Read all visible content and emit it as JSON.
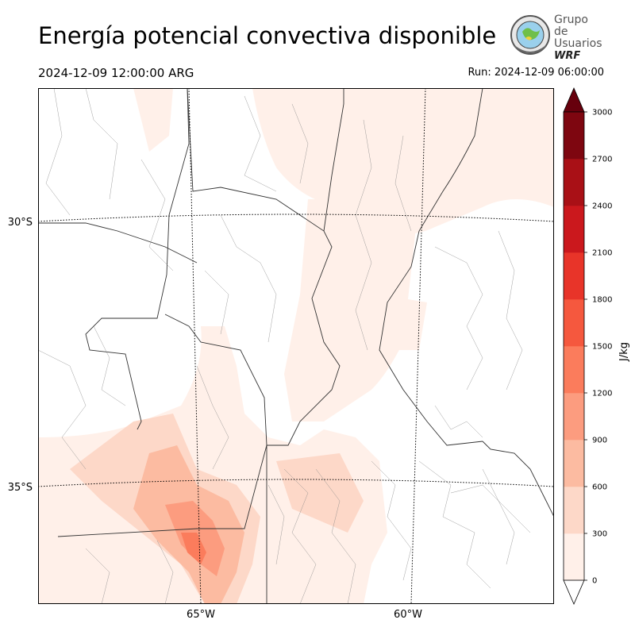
{
  "header": {
    "title": "Energía potencial convectiva disponible",
    "valid_time": "2024-12-09 12:00:00 ARG",
    "run_time": "Run: 2024-12-09 06:00:00"
  },
  "logo": {
    "line1": "Grupo de",
    "line2": "Usuarios",
    "line3": "WRF"
  },
  "map": {
    "lat_labels": [
      "30°S",
      "35°S"
    ],
    "lon_labels": [
      "65°W",
      "60°W"
    ]
  },
  "colorbar": {
    "unit": "J/kg",
    "levels": [
      0,
      300,
      600,
      900,
      1200,
      1500,
      1800,
      2100,
      2400,
      2700,
      3000
    ],
    "tick_labels": [
      "0",
      "300",
      "600",
      "900",
      "1200",
      "1500",
      "1800",
      "2100",
      "2400",
      "2700",
      "3000"
    ],
    "colors": [
      "#fff0e9",
      "#fdd8c8",
      "#fcbba1",
      "#fc9c7f",
      "#fb7c5c",
      "#f5583e",
      "#e83429",
      "#cb181d",
      "#a91016",
      "#7e0610"
    ],
    "extend_color": "#67000d"
  }
}
